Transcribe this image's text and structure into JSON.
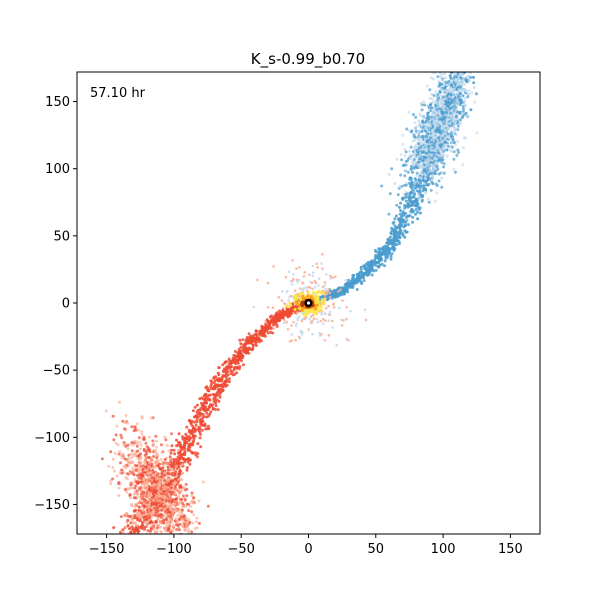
{
  "chart_data": {
    "type": "scatter",
    "title": "K_s-0.99_b0.70",
    "xlabel": "",
    "ylabel": "",
    "xlim": [
      -172,
      172
    ],
    "ylim": [
      -172,
      172
    ],
    "xticks": [
      -150,
      -100,
      -50,
      0,
      50,
      100,
      150
    ],
    "yticks": [
      -150,
      -100,
      -50,
      0,
      50,
      100,
      150
    ],
    "x_tick_labels": [
      "−150",
      "−100",
      "−50",
      "0",
      "50",
      "100",
      "150"
    ],
    "y_tick_labels": [
      "−150",
      "−100",
      "−50",
      "0",
      "50",
      "100",
      "150"
    ],
    "grid": false,
    "annotation": "57.10 hr",
    "series": [
      {
        "color": "#4a9cce",
        "light_color": "#c6dcef",
        "spine": [
          [
            8,
            2
          ],
          [
            25,
            9
          ],
          [
            45,
            25
          ],
          [
            62,
            45
          ],
          [
            77,
            75
          ],
          [
            92,
            108
          ],
          [
            100,
            135
          ],
          [
            108,
            158
          ],
          [
            112,
            172
          ]
        ],
        "cloud": {
          "center": [
            94,
            125
          ],
          "spread": [
            9,
            22
          ]
        }
      },
      {
        "color": "#ee4a33",
        "light_color": "#fcb29a",
        "spine": [
          [
            -8,
            -3
          ],
          [
            -22,
            -10
          ],
          [
            -42,
            -28
          ],
          [
            -60,
            -50
          ],
          [
            -77,
            -78
          ],
          [
            -92,
            -110
          ],
          [
            -108,
            -138
          ],
          [
            -120,
            -158
          ],
          [
            -132,
            -172
          ]
        ],
        "cloud": {
          "center": [
            -113,
            -140
          ],
          "spread": [
            11,
            20
          ]
        }
      }
    ],
    "core": {
      "center": [
        0,
        0
      ],
      "radius": 10,
      "colors": [
        "#fde64b",
        "#f99b1c",
        "#b3380d",
        "#000000",
        "#ffffff"
      ]
    }
  }
}
